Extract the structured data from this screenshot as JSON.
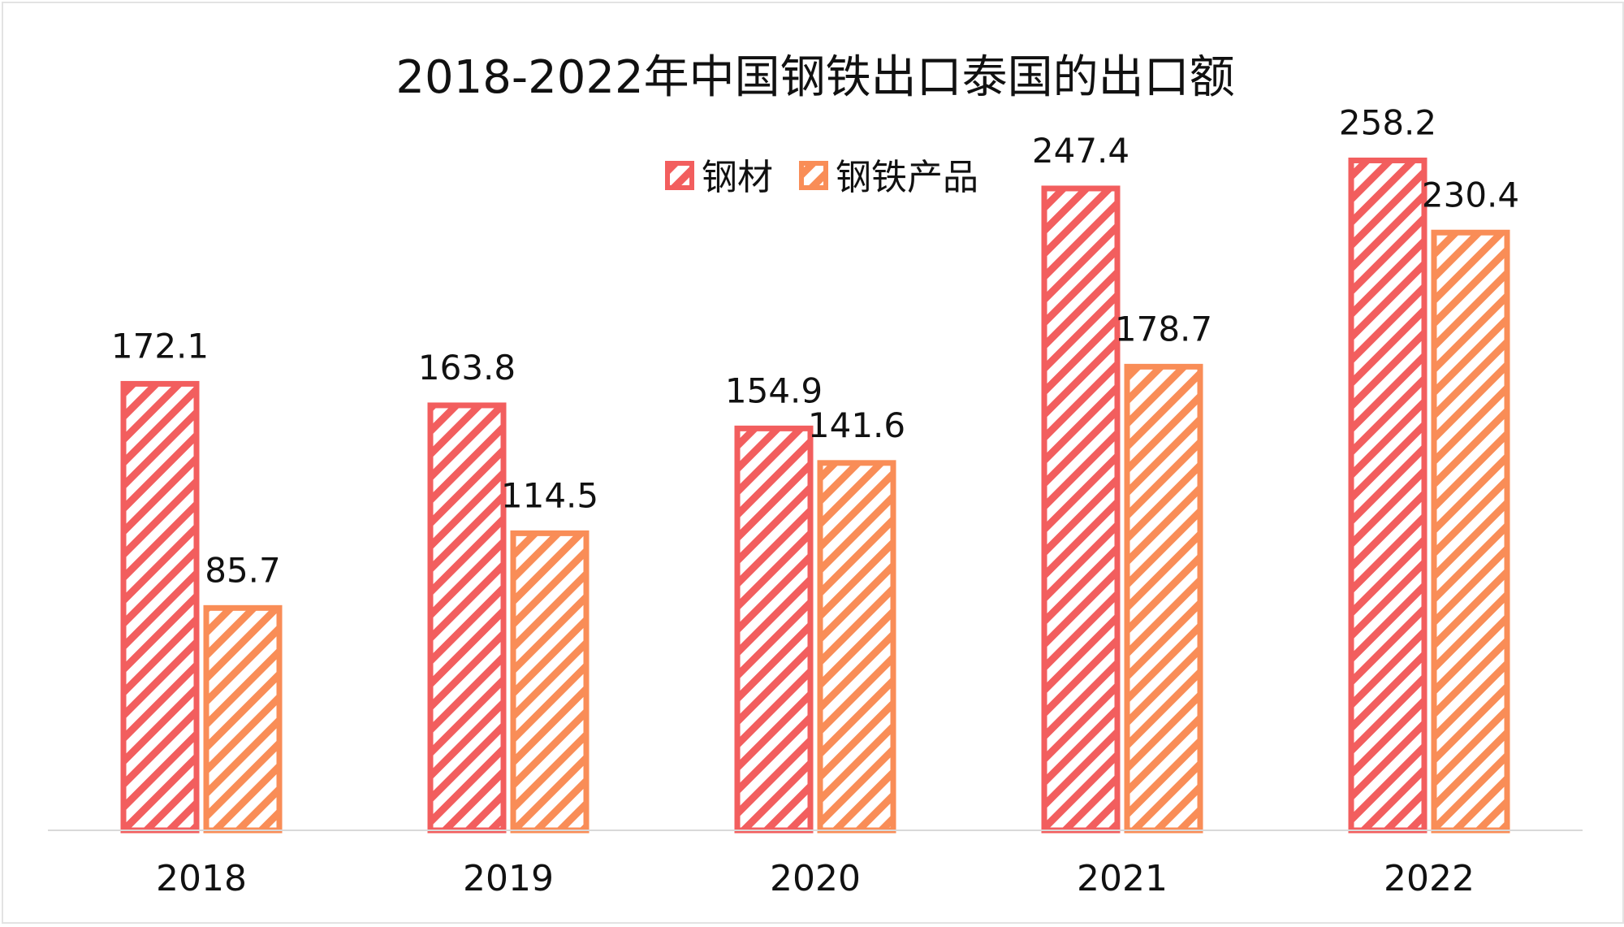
{
  "chart_data": {
    "type": "bar",
    "title": "2018-2022年中国钢铁出口泰国的出口额",
    "categories": [
      "2018",
      "2019",
      "2020",
      "2021",
      "2022"
    ],
    "series": [
      {
        "name": "钢材",
        "values": [
          172.1,
          163.8,
          154.9,
          247.4,
          258.2
        ],
        "color": "#f25e5e",
        "pattern": "diagonal-stripes"
      },
      {
        "name": "钢铁产品",
        "values": [
          85.7,
          114.5,
          141.6,
          178.7,
          230.4
        ],
        "color": "#f98d57",
        "pattern": "diagonal-stripes"
      }
    ],
    "ylim": [
      0,
      300
    ],
    "grid": false,
    "legend": "top-center",
    "data_labels": true
  }
}
